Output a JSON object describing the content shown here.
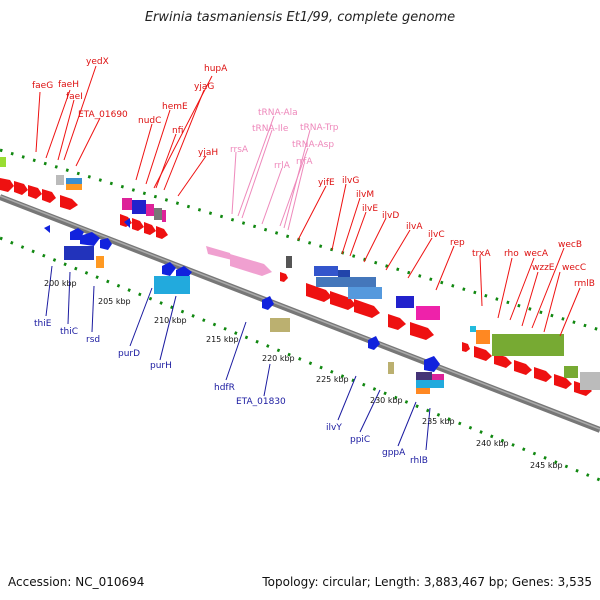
{
  "title": "Erwinia tasmaniensis Et1/99, complete genome",
  "footer": {
    "accession": "Accession: NC_010694",
    "topology": "Topology: circular; Length: 3,883,467 bp; Genes: 3,535"
  },
  "colors": {
    "forward_gene": "#ee1111",
    "reverse_gene": "#1122dd",
    "forward_label": "#dd1111",
    "reverse_label": "#1a1aa0",
    "trna_label": "#ee88bb",
    "trna_gene": "#f0a0d0",
    "backbone": "#7a7a7a",
    "dots": "#118811"
  },
  "forward_labels": [
    "faeG",
    "faeH",
    "faeI",
    "yedX",
    "ETA_01690",
    "hupA",
    "yjaG",
    "hemE",
    "nudC",
    "nfi",
    "yjaH",
    "yifE",
    "ilvG",
    "ilvM",
    "ilvE",
    "ilvD",
    "ilvA",
    "ilvC",
    "rep",
    "trxA",
    "rho",
    "wecA",
    "wecB",
    "wzzE",
    "wecC",
    "rmlB"
  ],
  "trna_labels": [
    "tRNA-Ala",
    "tRNA-Ile",
    "tRNA-Trp",
    "tRNA-Asp",
    "rrsA",
    "rrlA",
    "rrfA"
  ],
  "reverse_labels": [
    "thiE",
    "thiC",
    "rsd",
    "purD",
    "purH",
    "hdfR",
    "ETA_01830",
    "ilvY",
    "ppiC",
    "gppA",
    "rhlB"
  ],
  "kbp_ticks": [
    "200 kbp",
    "205 kbp",
    "210 kbp",
    "215 kbp",
    "220 kbp",
    "225 kbp",
    "230 kbp",
    "235 kbp",
    "240 kbp",
    "245 kbp"
  ]
}
